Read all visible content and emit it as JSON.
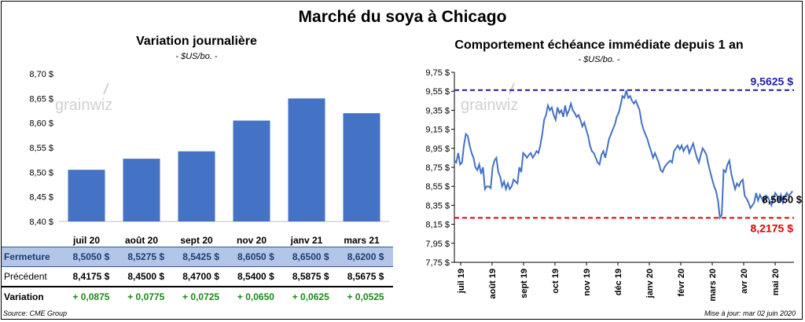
{
  "title": "Marché du soya à Chicago",
  "source": "Source: CME Group",
  "updated": "Mise à jour: mar 02 juin 2020",
  "colors": {
    "bar": "#4472c4",
    "line": "#4472c4",
    "high": "#1f1fa8",
    "low": "#e00000"
  },
  "chart_data": [
    {
      "type": "bar",
      "title": "Variation journalière",
      "unit": "- $US/bo. -",
      "watermark": "grainwiz",
      "categories": [
        "juil 20",
        "août 20",
        "sept 20",
        "nov 20",
        "janv 21",
        "mars 21"
      ],
      "values": [
        8.505,
        8.5275,
        8.5425,
        8.605,
        8.65,
        8.62
      ],
      "ylim": [
        8.4,
        8.7
      ],
      "yticks": [
        "8,40 $",
        "8,45 $",
        "8,50 $",
        "8,55 $",
        "8,60 $",
        "8,65 $",
        "8,70 $"
      ],
      "table": {
        "rows": [
          {
            "label": "Fermeture",
            "values": [
              "8,5050  $",
              "8,5275  $",
              "8,5425  $",
              "8,6050  $",
              "8,6500  $",
              "8,6200  $"
            ]
          },
          {
            "label": "Précédent",
            "values": [
              "8,4175  $",
              "8,4500  $",
              "8,4700  $",
              "8,5400  $",
              "8,5875  $",
              "8,5675  $"
            ]
          },
          {
            "label": "Variation",
            "values": [
              "+ 0,0875",
              "+ 0,0775",
              "+ 0,0725",
              "+ 0,0650",
              "+ 0,0625",
              "+ 0,0525"
            ]
          }
        ]
      }
    },
    {
      "type": "line",
      "title": "Comportement  échéance immédiate depuis 1 an",
      "unit": "- $US/bo. -",
      "watermark": "grainwiz",
      "ylim": [
        7.75,
        9.75
      ],
      "yticks": [
        "7,75 $",
        "7,95 $",
        "8,15 $",
        "8,35 $",
        "8,55 $",
        "8,75 $",
        "8,95 $",
        "9,15 $",
        "9,35 $",
        "9,55 $",
        "9,75 $"
      ],
      "xticks": [
        "juil 19",
        "août 19",
        "sept 19",
        "oct 19",
        "nov 19",
        "déc 19",
        "janv 20",
        "févr 20",
        "mars 20",
        "avr 20",
        "mai 20"
      ],
      "high": {
        "value": 9.5625,
        "label": "9,5625  $"
      },
      "low": {
        "value": 8.2175,
        "label": "8,2175  $"
      },
      "last": {
        "label": "8,5050 $"
      },
      "series": [
        {
          "values": [
            8.82,
            8.8,
            8.9,
            8.78,
            8.8,
            8.98,
            9.1,
            9.08,
            8.98,
            8.9,
            8.85,
            8.75,
            8.72,
            8.78,
            8.68,
            8.75,
            8.52,
            8.55,
            8.55,
            8.53,
            8.75,
            8.82,
            8.85,
            8.7,
            8.65,
            8.55,
            8.6,
            8.52,
            8.58,
            8.52,
            8.55,
            8.62,
            8.6,
            8.58,
            8.75,
            8.7,
            8.9,
            8.88,
            8.85,
            8.88,
            8.9,
            8.85,
            8.88,
            8.92,
            8.9,
            8.98,
            9.1,
            9.25,
            9.3,
            9.4,
            9.35,
            9.38,
            9.3,
            9.25,
            9.38,
            9.32,
            9.35,
            9.28,
            9.4,
            9.3,
            9.35,
            9.42,
            9.35,
            9.32,
            9.28,
            9.3,
            9.25,
            9.18,
            9.22,
            9.15,
            9.08,
            8.98,
            8.92,
            8.9,
            8.85,
            8.8,
            8.78,
            8.88,
            8.92,
            8.85,
            8.95,
            9.05,
            9.1,
            9.15,
            9.2,
            9.28,
            9.32,
            9.4,
            9.5,
            9.48,
            9.56,
            9.48,
            9.5,
            9.45,
            9.42,
            9.45,
            9.4,
            9.35,
            9.22,
            9.15,
            9.1,
            9.05,
            8.98,
            8.92,
            8.85,
            8.9,
            8.85,
            8.8,
            8.72,
            8.7,
            8.75,
            8.78,
            8.8,
            8.82,
            8.8,
            8.92,
            8.95,
            8.98,
            8.94,
            8.98,
            8.92,
            8.96,
            8.98,
            8.9,
            8.95,
            9.0,
            8.92,
            8.85,
            8.8,
            8.88,
            8.95,
            8.92,
            8.88,
            8.78,
            8.7,
            8.62,
            8.55,
            8.5,
            8.4,
            8.22,
            8.25,
            8.72,
            8.7,
            8.78,
            8.82,
            8.68,
            8.6,
            8.52,
            8.58,
            8.55,
            8.6,
            8.62,
            8.45,
            8.42,
            8.38,
            8.32,
            8.35,
            8.38,
            8.48,
            8.4,
            8.46,
            8.42,
            8.38,
            8.45,
            8.44,
            8.4,
            8.35,
            8.42,
            8.48,
            8.45,
            8.4,
            8.46,
            8.38,
            8.44,
            8.48,
            8.45,
            8.47,
            8.5
          ]
        }
      ]
    }
  ]
}
